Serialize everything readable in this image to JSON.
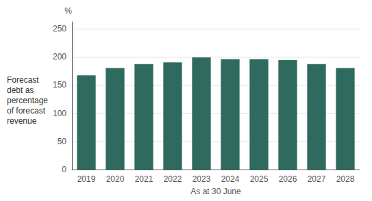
{
  "chart_data": {
    "type": "bar",
    "categories": [
      "2019",
      "2020",
      "2021",
      "2022",
      "2023",
      "2024",
      "2025",
      "2026",
      "2027",
      "2028"
    ],
    "values": [
      167,
      180,
      187,
      190,
      199,
      196,
      196,
      194,
      187,
      180
    ],
    "color": "#2e6b5e",
    "xlabel": "As at 30 June",
    "ylabel": "Forecast\ndebt as\npercentage\nof forecast\nrevenue",
    "annotations": [
      "%"
    ],
    "ylim": [
      0,
      262
    ],
    "yticks": [
      0,
      50,
      100,
      150,
      200,
      250
    ],
    "grid": true
  }
}
